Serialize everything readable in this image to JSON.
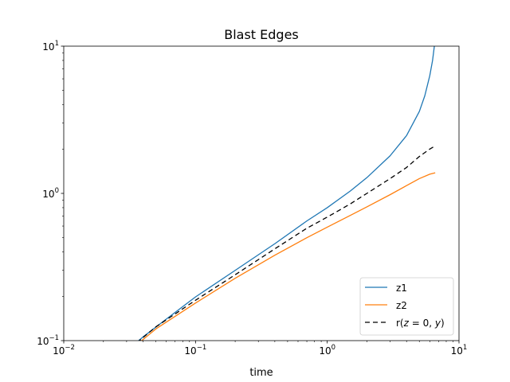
{
  "chart_data": {
    "type": "line",
    "title": "Blast Edges",
    "xlabel": "time",
    "ylabel": "",
    "xscale": "log",
    "yscale": "log",
    "xlim": [
      0.01,
      10
    ],
    "ylim": [
      0.1,
      10
    ],
    "grid": false,
    "legend_position": "lower-right",
    "xticks": [
      {
        "value": 0.01,
        "base": "10",
        "exp": "−2"
      },
      {
        "value": 0.1,
        "base": "10",
        "exp": "−1"
      },
      {
        "value": 1,
        "base": "10",
        "exp": "0"
      },
      {
        "value": 10,
        "base": "10",
        "exp": "1"
      }
    ],
    "yticks": [
      {
        "value": 0.1,
        "base": "10",
        "exp": "−1"
      },
      {
        "value": 1,
        "base": "10",
        "exp": "0"
      },
      {
        "value": 10,
        "base": "10",
        "exp": "1"
      }
    ],
    "series": [
      {
        "name": "z1",
        "color": "#1f77b4",
        "dash": "",
        "points": [
          [
            0.035,
            0.096
          ],
          [
            0.04,
            0.106
          ],
          [
            0.06,
            0.14
          ],
          [
            0.1,
            0.198
          ],
          [
            0.2,
            0.3
          ],
          [
            0.4,
            0.455
          ],
          [
            0.7,
            0.65
          ],
          [
            1.0,
            0.8
          ],
          [
            1.5,
            1.04
          ],
          [
            2.0,
            1.28
          ],
          [
            3.0,
            1.8
          ],
          [
            4.0,
            2.47
          ],
          [
            5.0,
            3.6
          ],
          [
            5.5,
            4.6
          ],
          [
            6.0,
            6.3
          ],
          [
            6.3,
            8.0
          ],
          [
            6.5,
            10.0
          ]
        ]
      },
      {
        "name": "z2",
        "color": "#ff7f0e",
        "dash": "",
        "points": [
          [
            0.038,
            0.098
          ],
          [
            0.05,
            0.12
          ],
          [
            0.1,
            0.18
          ],
          [
            0.2,
            0.265
          ],
          [
            0.4,
            0.38
          ],
          [
            0.7,
            0.5
          ],
          [
            1.0,
            0.59
          ],
          [
            1.5,
            0.71
          ],
          [
            2.0,
            0.81
          ],
          [
            3.0,
            0.98
          ],
          [
            4.0,
            1.13
          ],
          [
            5.0,
            1.26
          ],
          [
            6.0,
            1.35
          ],
          [
            6.6,
            1.38
          ]
        ]
      },
      {
        "name": "r(z=0,y)",
        "legend_label": [
          "r(",
          "z",
          " = 0, ",
          "y",
          ")"
        ],
        "color": "#000000",
        "dash": "6,4",
        "points": [
          [
            0.036,
            0.097
          ],
          [
            0.05,
            0.124
          ],
          [
            0.1,
            0.188
          ],
          [
            0.2,
            0.28
          ],
          [
            0.4,
            0.42
          ],
          [
            0.7,
            0.58
          ],
          [
            1.0,
            0.69
          ],
          [
            1.5,
            0.85
          ],
          [
            2.0,
            1.0
          ],
          [
            3.0,
            1.26
          ],
          [
            4.0,
            1.5
          ],
          [
            5.0,
            1.78
          ],
          [
            6.0,
            2.0
          ],
          [
            6.6,
            2.1
          ]
        ]
      }
    ]
  }
}
